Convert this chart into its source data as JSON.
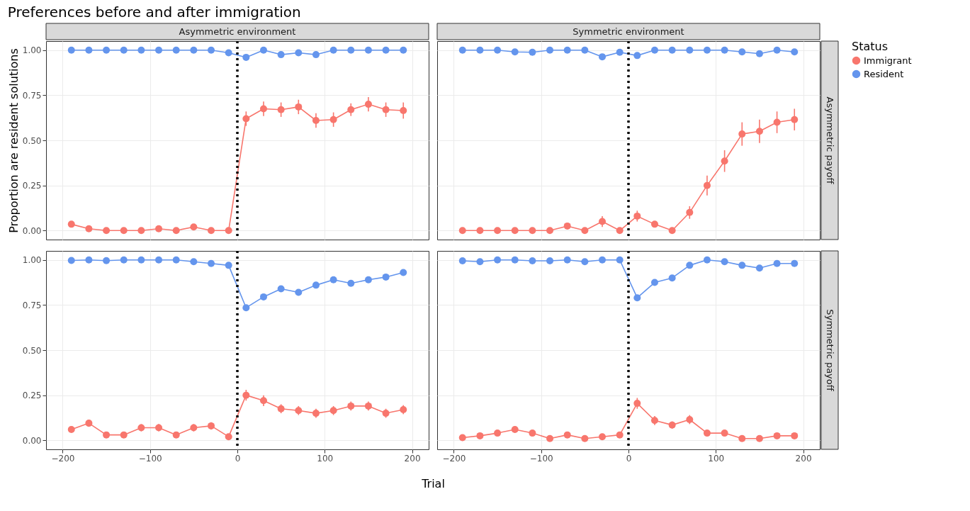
{
  "chart_data": [
    {
      "type": "line",
      "title": "Preferences before and after immigration",
      "subtitle": "Asymmetric environment",
      "ylabel": "Proportion are resident solutions",
      "x": [
        -190,
        -170,
        -150,
        -130,
        -110,
        -90,
        -70,
        -50,
        -30,
        -10,
        10,
        30,
        50,
        70,
        90,
        110,
        130,
        150,
        170,
        190
      ],
      "series": [
        {
          "color": "#f8766d",
          "values": [
            0.035,
            0.01,
            0,
            0,
            0,
            0.01,
            0,
            0.02,
            0,
            0,
            0.62,
            0.675,
            0.67,
            0.685,
            0.61,
            0.615,
            0.67,
            0.7,
            0.67,
            0.665
          ],
          "errors": [
            null,
            null,
            null,
            null,
            null,
            null,
            null,
            null,
            null,
            null,
            0.04,
            0.04,
            0.04,
            0.04,
            0.04,
            0.04,
            0.035,
            0.04,
            0.04,
            0.045
          ]
        },
        {
          "color": "#6495ed",
          "values": [
            1,
            1,
            1,
            1,
            1,
            1,
            1,
            1,
            1,
            0.985,
            0.96,
            1,
            0.975,
            0.985,
            0.975,
            1,
            1,
            1,
            1,
            1
          ]
        }
      ],
      "xlim": [
        -219,
        219
      ],
      "xticks": [
        -200,
        -100,
        0,
        100,
        200
      ],
      "ylim": [
        -0.05,
        1.05
      ],
      "yticks": [
        {
          "value": 0,
          "label": "0.00"
        },
        {
          "value": 0.25,
          "label": "0.25"
        },
        {
          "value": 0.5,
          "label": "0.50"
        },
        {
          "value": 0.75,
          "label": "0.75"
        },
        {
          "value": 1,
          "label": "1.00"
        }
      ],
      "tick_labels": "y",
      "grid": true,
      "marker": "circle",
      "line_style": "solid",
      "ref_lines": [
        {
          "axis": "x",
          "value": 0,
          "color": "#000000",
          "line_style": "dotted"
        }
      ]
    },
    {
      "type": "line",
      "subtitle": "Symmetric environment",
      "y2label": "Asymmetric payoff",
      "legend_title": "Status",
      "legend": "right",
      "x": [
        -190,
        -170,
        -150,
        -130,
        -110,
        -90,
        -70,
        -50,
        -30,
        -10,
        10,
        30,
        50,
        70,
        90,
        110,
        130,
        150,
        170,
        190
      ],
      "series": [
        {
          "name": "Immigrant",
          "color": "#f8766d",
          "values": [
            0,
            0,
            0,
            0,
            0,
            0,
            0.025,
            0,
            0.05,
            0,
            0.08,
            0.035,
            0,
            0.1,
            0.25,
            0.385,
            0.535,
            0.55,
            0.6,
            0.615
          ],
          "errors": [
            null,
            null,
            null,
            null,
            null,
            null,
            0.015,
            null,
            0.03,
            null,
            0.03,
            0.015,
            null,
            0.035,
            0.055,
            0.06,
            0.065,
            0.065,
            0.06,
            0.06
          ]
        },
        {
          "name": "Resident",
          "color": "#6495ed",
          "values": [
            1,
            1,
            1,
            0.99,
            0.988,
            1,
            1,
            1,
            0.963,
            0.988,
            0.97,
            1,
            1,
            1,
            1,
            1,
            0.99,
            0.98,
            1,
            0.99
          ]
        }
      ],
      "xlim": [
        -219,
        219
      ],
      "xticks": [
        -200,
        -100,
        0,
        100,
        200
      ],
      "ylim": [
        -0.05,
        1.05
      ],
      "yticks": [
        0,
        0.25,
        0.5,
        0.75,
        1
      ],
      "tick_labels": false,
      "grid": true,
      "marker": "circle",
      "line_style": "solid",
      "ref_lines": [
        {
          "axis": "x",
          "value": 0,
          "color": "#000000",
          "line_style": "dotted"
        }
      ]
    },
    {
      "type": "line",
      "xlabel": "Trial",
      "x": [
        -190,
        -170,
        -150,
        -130,
        -110,
        -90,
        -70,
        -50,
        -30,
        -10,
        10,
        30,
        50,
        70,
        90,
        110,
        130,
        150,
        170,
        190
      ],
      "series": [
        {
          "color": "#f8766d",
          "values": [
            0.06,
            0.095,
            0.03,
            0.03,
            0.07,
            0.07,
            0.03,
            0.07,
            0.08,
            0.02,
            0.25,
            0.22,
            0.175,
            0.165,
            0.15,
            0.165,
            0.19,
            0.19,
            0.15,
            0.17
          ],
          "errors": [
            null,
            0.02,
            null,
            null,
            0.02,
            0.02,
            null,
            0.02,
            0.02,
            null,
            0.03,
            0.03,
            0.025,
            0.025,
            0.025,
            0.025,
            0.025,
            0.025,
            0.025,
            0.025
          ]
        },
        {
          "color": "#6495ed",
          "values": [
            0.997,
            1,
            0.996,
            1,
            1,
            1,
            1,
            0.99,
            0.98,
            0.97,
            0.735,
            0.795,
            0.84,
            0.82,
            0.86,
            0.89,
            0.87,
            0.89,
            0.905,
            0.93
          ]
        }
      ],
      "xlim": [
        -219,
        219
      ],
      "xticks": [
        -200,
        -100,
        0,
        100,
        200
      ],
      "ylim": [
        -0.05,
        1.05
      ],
      "yticks": [
        {
          "value": 0,
          "label": "0.00"
        },
        {
          "value": 0.25,
          "label": "0.25"
        },
        {
          "value": 0.5,
          "label": "0.50"
        },
        {
          "value": 0.75,
          "label": "0.75"
        },
        {
          "value": 1,
          "label": "1.00"
        }
      ],
      "grid": true,
      "marker": "circle",
      "line_style": "solid",
      "ref_lines": [
        {
          "axis": "x",
          "value": 0,
          "color": "#000000",
          "line_style": "dotted"
        }
      ]
    },
    {
      "type": "line",
      "y2label": "Symmetric payoff",
      "x": [
        -190,
        -170,
        -150,
        -130,
        -110,
        -90,
        -70,
        -50,
        -30,
        -10,
        10,
        30,
        50,
        70,
        90,
        110,
        130,
        150,
        170,
        190
      ],
      "series": [
        {
          "color": "#f8766d",
          "values": [
            0.015,
            0.025,
            0.04,
            0.06,
            0.04,
            0.01,
            0.03,
            0.01,
            0.02,
            0.03,
            0.205,
            0.11,
            0.085,
            0.115,
            0.04,
            0.04,
            0.01,
            0.01,
            0.025,
            0.025
          ],
          "errors": [
            null,
            null,
            null,
            0.015,
            null,
            null,
            null,
            null,
            null,
            null,
            0.03,
            0.025,
            0.02,
            0.025,
            null,
            null,
            null,
            null,
            null,
            null
          ]
        },
        {
          "color": "#6495ed",
          "values": [
            0.995,
            0.99,
            1,
            1,
            0.995,
            0.995,
            1,
            0.99,
            1,
            1,
            0.79,
            0.875,
            0.9,
            0.97,
            1,
            0.99,
            0.97,
            0.955,
            0.98,
            0.98
          ]
        }
      ],
      "xlim": [
        -219,
        219
      ],
      "xticks": [
        -200,
        -100,
        0,
        100,
        200
      ],
      "ylim": [
        -0.05,
        1.05
      ],
      "yticks": [
        0,
        0.25,
        0.5,
        0.75,
        1
      ],
      "tick_labels": "x",
      "grid": true,
      "marker": "circle",
      "line_style": "solid",
      "ref_lines": [
        {
          "axis": "x",
          "value": 0,
          "color": "#000000",
          "line_style": "dotted"
        }
      ]
    }
  ]
}
